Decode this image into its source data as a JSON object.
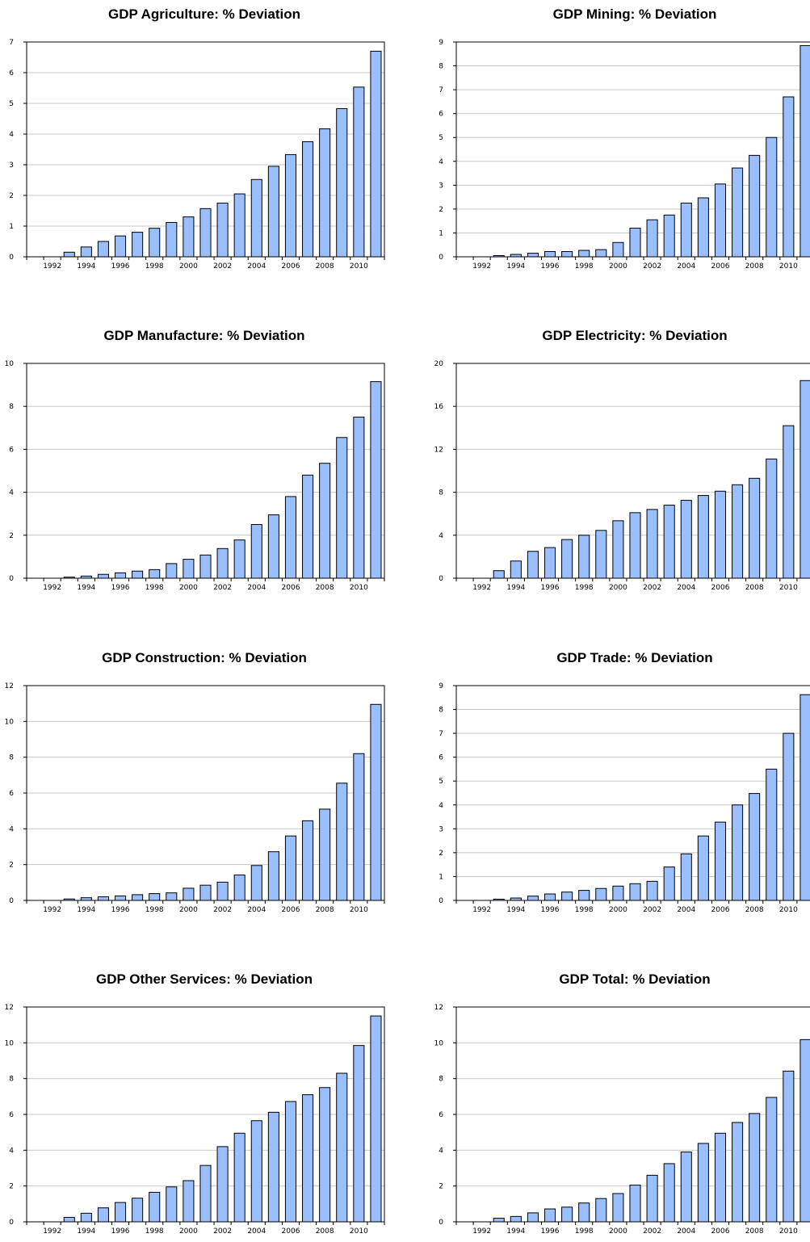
{
  "chart_data": [
    {
      "type": "bar",
      "title": "GDP Agriculture: % Deviation",
      "x": [
        1991,
        1992,
        1993,
        1994,
        1995,
        1996,
        1997,
        1998,
        1999,
        2000,
        2001,
        2002,
        2003,
        2004,
        2005,
        2006,
        2007,
        2008,
        2009,
        2010,
        2011
      ],
      "values": [
        0,
        0,
        0.15,
        0.32,
        0.5,
        0.68,
        0.8,
        0.93,
        1.12,
        1.3,
        1.57,
        1.75,
        2.05,
        2.52,
        2.95,
        3.33,
        3.75,
        4.17,
        4.83,
        5.53,
        6.7
      ],
      "xticks": [
        "1992",
        "1994",
        "1996",
        "1998",
        "2000",
        "2002",
        "2004",
        "2006",
        "2008",
        "2010"
      ],
      "yticks": [
        "0",
        "1",
        "2",
        "3",
        "4",
        "5",
        "6",
        "7"
      ],
      "ylim": [
        0,
        7
      ],
      "grid": true,
      "bar_color": "#9ABFFF",
      "xlabel": "",
      "ylabel": ""
    },
    {
      "type": "bar",
      "title": "GDP Mining: % Deviation",
      "x": [
        1991,
        1992,
        1993,
        1994,
        1995,
        1996,
        1997,
        1998,
        1999,
        2000,
        2001,
        2002,
        2003,
        2004,
        2005,
        2006,
        2007,
        2008,
        2009,
        2010,
        2011
      ],
      "values": [
        0,
        0,
        0.05,
        0.1,
        0.15,
        0.22,
        0.22,
        0.27,
        0.3,
        0.6,
        1.2,
        1.55,
        1.75,
        2.25,
        2.47,
        3.05,
        3.72,
        4.25,
        5.0,
        6.7,
        8.85
      ],
      "xticks": [
        "1992",
        "1994",
        "1996",
        "1998",
        "2000",
        "2002",
        "2004",
        "2006",
        "2008",
        "2010"
      ],
      "yticks": [
        "0",
        "1",
        "2",
        "3",
        "4",
        "5",
        "6",
        "7",
        "8",
        "9"
      ],
      "ylim": [
        0,
        9
      ],
      "grid": true,
      "bar_color": "#9ABFFF",
      "xlabel": "",
      "ylabel": ""
    },
    {
      "type": "bar",
      "title": "GDP Manufacture: % Deviation",
      "x": [
        1991,
        1992,
        1993,
        1994,
        1995,
        1996,
        1997,
        1998,
        1999,
        2000,
        2001,
        2002,
        2003,
        2004,
        2005,
        2006,
        2007,
        2008,
        2009,
        2010,
        2011
      ],
      "values": [
        0,
        0,
        0.05,
        0.1,
        0.18,
        0.25,
        0.33,
        0.4,
        0.68,
        0.88,
        1.08,
        1.38,
        1.78,
        2.5,
        2.95,
        3.8,
        4.8,
        5.35,
        6.55,
        7.5,
        9.15
      ],
      "xticks": [
        "1992",
        "1994",
        "1996",
        "1998",
        "2000",
        "2002",
        "2004",
        "2006",
        "2008",
        "2010"
      ],
      "yticks": [
        "0",
        "2",
        "4",
        "6",
        "8",
        "10"
      ],
      "ylim": [
        0,
        10
      ],
      "grid": true,
      "bar_color": "#9ABFFF",
      "xlabel": "",
      "ylabel": ""
    },
    {
      "type": "bar",
      "title": "GDP Electricity: % Deviation",
      "x": [
        1991,
        1992,
        1993,
        1994,
        1995,
        1996,
        1997,
        1998,
        1999,
        2000,
        2001,
        2002,
        2003,
        2004,
        2005,
        2006,
        2007,
        2008,
        2009,
        2010,
        2011
      ],
      "values": [
        0,
        0,
        0.7,
        1.6,
        2.5,
        2.85,
        3.6,
        4.0,
        4.45,
        5.35,
        6.1,
        6.4,
        6.8,
        7.25,
        7.7,
        8.1,
        8.7,
        9.3,
        11.1,
        14.2,
        18.4
      ],
      "xticks": [
        "1992",
        "1994",
        "1996",
        "1998",
        "2000",
        "2002",
        "2004",
        "2006",
        "2008",
        "2010"
      ],
      "yticks": [
        "0",
        "4",
        "8",
        "12",
        "16",
        "20"
      ],
      "ylim": [
        0,
        20
      ],
      "grid": true,
      "bar_color": "#9ABFFF",
      "xlabel": "",
      "ylabel": ""
    },
    {
      "type": "bar",
      "title": "GDP Construction: % Deviation",
      "x": [
        1991,
        1992,
        1993,
        1994,
        1995,
        1996,
        1997,
        1998,
        1999,
        2000,
        2001,
        2002,
        2003,
        2004,
        2005,
        2006,
        2007,
        2008,
        2009,
        2010,
        2011
      ],
      "values": [
        0,
        0,
        0.08,
        0.15,
        0.2,
        0.25,
        0.32,
        0.38,
        0.42,
        0.68,
        0.85,
        1.02,
        1.42,
        1.95,
        2.72,
        3.6,
        4.45,
        5.1,
        6.55,
        8.2,
        10.95
      ],
      "xticks": [
        "1992",
        "1994",
        "1996",
        "1998",
        "2000",
        "2002",
        "2004",
        "2006",
        "2008",
        "2010"
      ],
      "yticks": [
        "0",
        "2",
        "4",
        "6",
        "8",
        "10",
        "12"
      ],
      "ylim": [
        0,
        12
      ],
      "grid": true,
      "bar_color": "#9ABFFF",
      "xlabel": "",
      "ylabel": ""
    },
    {
      "type": "bar",
      "title": "GDP Trade: % Deviation",
      "x": [
        1991,
        1992,
        1993,
        1994,
        1995,
        1996,
        1997,
        1998,
        1999,
        2000,
        2001,
        2002,
        2003,
        2004,
        2005,
        2006,
        2007,
        2008,
        2009,
        2010,
        2011
      ],
      "values": [
        0,
        0,
        0.05,
        0.1,
        0.18,
        0.27,
        0.35,
        0.42,
        0.5,
        0.6,
        0.7,
        0.8,
        1.4,
        1.95,
        2.7,
        3.28,
        4.0,
        4.48,
        5.5,
        7.0,
        8.62
      ],
      "xticks": [
        "1992",
        "1994",
        "1996",
        "1998",
        "2000",
        "2002",
        "2004",
        "2006",
        "2008",
        "2010"
      ],
      "yticks": [
        "0",
        "1",
        "2",
        "3",
        "4",
        "5",
        "6",
        "7",
        "8",
        "9"
      ],
      "ylim": [
        0,
        9
      ],
      "grid": true,
      "bar_color": "#9ABFFF",
      "xlabel": "",
      "ylabel": ""
    },
    {
      "type": "bar",
      "title": "GDP Other Services: % Deviation",
      "x": [
        1991,
        1992,
        1993,
        1994,
        1995,
        1996,
        1997,
        1998,
        1999,
        2000,
        2001,
        2002,
        2003,
        2004,
        2005,
        2006,
        2007,
        2008,
        2009,
        2010,
        2011
      ],
      "values": [
        0,
        0,
        0.25,
        0.48,
        0.78,
        1.08,
        1.32,
        1.65,
        1.95,
        2.3,
        3.15,
        4.2,
        4.95,
        5.65,
        6.12,
        6.72,
        7.1,
        7.5,
        8.3,
        9.85,
        11.5
      ],
      "xticks": [
        "1992",
        "1994",
        "1996",
        "1998",
        "2000",
        "2002",
        "2004",
        "2006",
        "2008",
        "2010"
      ],
      "yticks": [
        "0",
        "2",
        "4",
        "6",
        "8",
        "10",
        "12"
      ],
      "ylim": [
        0,
        12
      ],
      "grid": true,
      "bar_color": "#9ABFFF",
      "xlabel": "",
      "ylabel": ""
    },
    {
      "type": "bar",
      "title": "GDP Total: % Deviation",
      "x": [
        1991,
        1992,
        1993,
        1994,
        1995,
        1996,
        1997,
        1998,
        1999,
        2000,
        2001,
        2002,
        2003,
        2004,
        2005,
        2006,
        2007,
        2008,
        2009,
        2010,
        2011
      ],
      "values": [
        0,
        0,
        0.2,
        0.3,
        0.5,
        0.72,
        0.82,
        1.05,
        1.3,
        1.58,
        2.05,
        2.6,
        3.25,
        3.9,
        4.38,
        4.95,
        5.55,
        6.05,
        6.95,
        8.42,
        10.18
      ],
      "xticks": [
        "1992",
        "1994",
        "1996",
        "1998",
        "2000",
        "2002",
        "2004",
        "2006",
        "2008",
        "2010"
      ],
      "yticks": [
        "0",
        "2",
        "4",
        "6",
        "8",
        "10",
        "12"
      ],
      "ylim": [
        0,
        12
      ],
      "grid": true,
      "bar_color": "#9ABFFF",
      "xlabel": "",
      "ylabel": ""
    }
  ]
}
